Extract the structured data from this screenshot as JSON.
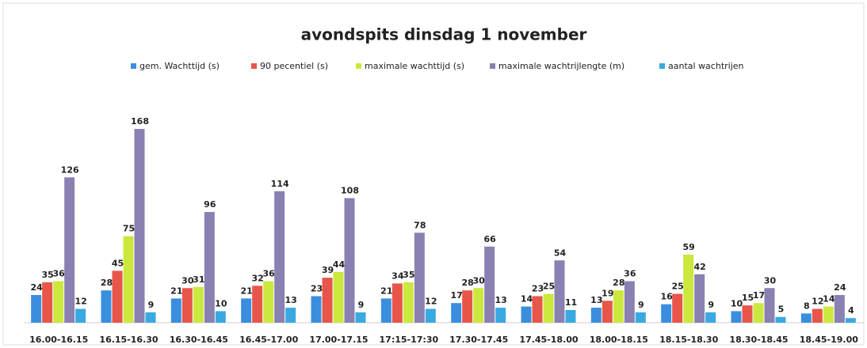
{
  "chart_data": {
    "type": "bar",
    "title": "avondspits dinsdag 1 november",
    "categories": [
      "16.00-16.15",
      "16.15-16.30",
      "16.30-16.45",
      "16.45-17.00",
      "17.00-17.15",
      "17:15-17:30",
      "17.30-17.45",
      "17.45-18.00",
      "18.00-18.15",
      "18.15-18.30",
      "18.30-18.45",
      "18.45-19.00"
    ],
    "series": [
      {
        "name": "gem. Wachttijd (s)",
        "color": "#3b8ede",
        "values": [
          24,
          28,
          21,
          21,
          23,
          21,
          17,
          14,
          13,
          16,
          10,
          8
        ]
      },
      {
        "name": "90 pecentiel (s)",
        "color": "#e8564a",
        "values": [
          35,
          45,
          30,
          32,
          39,
          34,
          28,
          23,
          19,
          25,
          15,
          12
        ]
      },
      {
        "name": "maximale wachttijd (s)",
        "color": "#cbe83e",
        "values": [
          36,
          75,
          31,
          36,
          44,
          35,
          30,
          25,
          28,
          59,
          17,
          14
        ]
      },
      {
        "name": "maximale wachtrijlengte (m)",
        "color": "#8a80b2",
        "values": [
          126,
          168,
          96,
          114,
          108,
          78,
          66,
          54,
          36,
          42,
          30,
          24
        ]
      },
      {
        "name": "aantal wachtrijen",
        "color": "#3aa9e2",
        "values": [
          12,
          9,
          10,
          13,
          9,
          12,
          13,
          11,
          9,
          9,
          5,
          4
        ]
      }
    ]
  }
}
